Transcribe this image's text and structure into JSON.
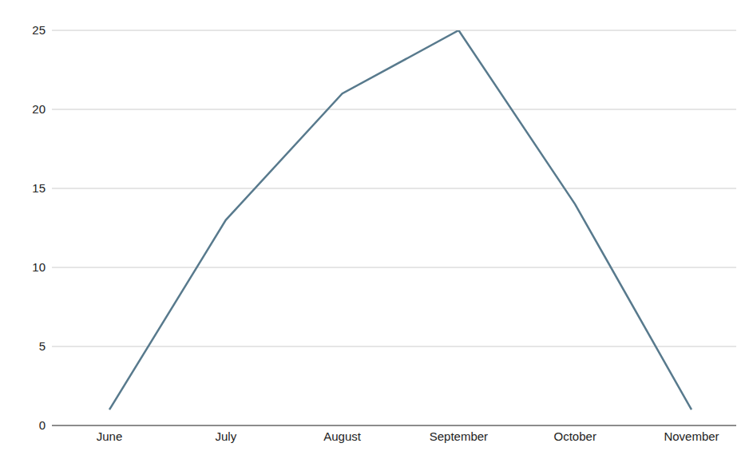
{
  "chart_data": {
    "type": "line",
    "categories": [
      "June",
      "July",
      "August",
      "September",
      "October",
      "November"
    ],
    "values": [
      1,
      13,
      21,
      25,
      14,
      1
    ],
    "color": "#587a8d",
    "ylim": [
      0,
      25
    ],
    "yticks": [
      0,
      5,
      10,
      15,
      20,
      25
    ],
    "grid": true
  }
}
